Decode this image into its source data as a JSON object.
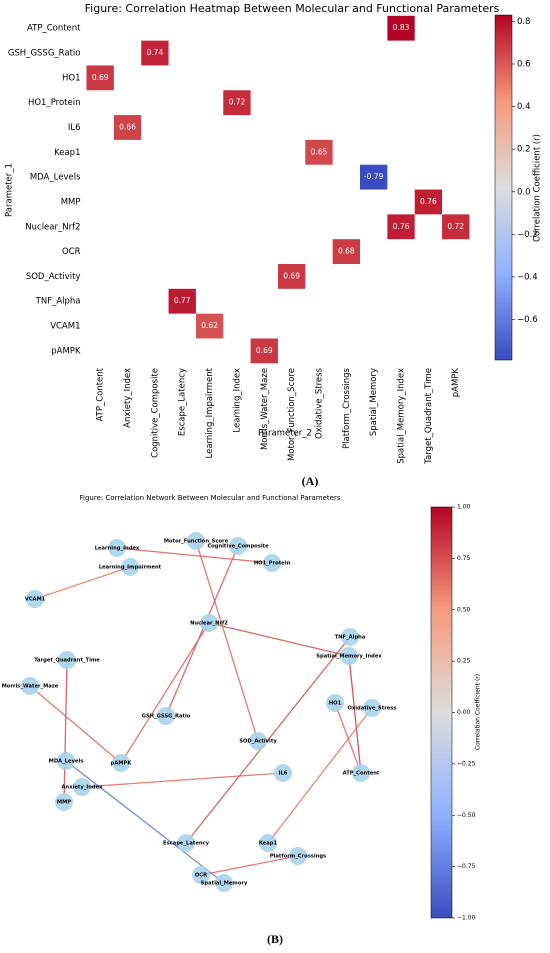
{
  "chart_data": [
    {
      "type": "heatmap",
      "title": "Figure: Correlation Heatmap Between Molecular and Functional Parameters",
      "panel": "(A)",
      "xlabel": "Parameter_2",
      "ylabel": "Parameter_1",
      "colorbar_label": "Correlation Coefficient (r)",
      "colormap": "coolwarm",
      "rows": [
        "ATP_Content",
        "GSH_GSSG_Ratio",
        "HO1",
        "HO1_Protein",
        "IL6",
        "Keap1",
        "MDA_Levels",
        "MMP",
        "Nuclear_Nrf2",
        "OCR",
        "SOD_Activity",
        "TNF_Alpha",
        "VCAM1",
        "pAMPK"
      ],
      "columns": [
        "ATP_Content",
        "Anxiety_Index",
        "Cognitive_Composite",
        "Escape_Latency",
        "Learning_Impairment",
        "Learning_Index",
        "Morris_Water_Maze",
        "Motor_Function_Score",
        "Oxidative_Stress",
        "Platform_Crossings",
        "Spatial_Memory",
        "Spatial_Memory_Index",
        "Target_Quadrant_Time",
        "pAMPK"
      ],
      "values": [
        [
          null,
          null,
          null,
          null,
          null,
          null,
          null,
          null,
          null,
          null,
          null,
          0.83,
          null,
          null
        ],
        [
          null,
          null,
          0.74,
          null,
          null,
          null,
          null,
          null,
          null,
          null,
          null,
          null,
          null,
          null
        ],
        [
          0.69,
          null,
          null,
          null,
          null,
          null,
          null,
          null,
          null,
          null,
          null,
          null,
          null,
          null
        ],
        [
          null,
          null,
          null,
          null,
          null,
          0.72,
          null,
          null,
          null,
          null,
          null,
          null,
          null,
          null
        ],
        [
          null,
          0.66,
          null,
          null,
          null,
          null,
          null,
          null,
          null,
          null,
          null,
          null,
          null,
          null
        ],
        [
          null,
          null,
          null,
          null,
          null,
          null,
          null,
          null,
          0.65,
          null,
          null,
          null,
          null,
          null
        ],
        [
          null,
          null,
          null,
          null,
          null,
          null,
          null,
          null,
          null,
          null,
          -0.79,
          null,
          null,
          null
        ],
        [
          null,
          null,
          null,
          null,
          null,
          null,
          null,
          null,
          null,
          null,
          null,
          null,
          0.76,
          null
        ],
        [
          null,
          null,
          null,
          null,
          null,
          null,
          null,
          null,
          null,
          null,
          null,
          0.76,
          null,
          0.72
        ],
        [
          null,
          null,
          null,
          null,
          null,
          null,
          null,
          null,
          null,
          0.68,
          null,
          null,
          null,
          null
        ],
        [
          null,
          null,
          null,
          null,
          null,
          null,
          null,
          0.69,
          null,
          null,
          null,
          null,
          null,
          null
        ],
        [
          null,
          null,
          null,
          0.77,
          null,
          null,
          null,
          null,
          null,
          null,
          null,
          null,
          null,
          null
        ],
        [
          null,
          null,
          null,
          null,
          0.62,
          null,
          null,
          null,
          null,
          null,
          null,
          null,
          null,
          null
        ],
        [
          null,
          null,
          null,
          null,
          null,
          null,
          0.69,
          null,
          null,
          null,
          null,
          null,
          null,
          null
        ]
      ],
      "clim": [
        -0.79,
        0.83
      ],
      "cticks": [
        {
          "value": -0.6,
          "label": "−0.6"
        },
        {
          "value": -0.4,
          "label": "−0.4"
        },
        {
          "value": -0.2,
          "label": "−0.2"
        },
        {
          "value": 0,
          "label": "0.0"
        },
        0.2,
        0.4,
        0.6,
        0.8
      ]
    },
    {
      "type": "network",
      "title": "Figure: Correlation Network Between Molecular and Functional Parameters",
      "panel": "(B)",
      "colorbar_label": "Correlation Coefficient (r)",
      "colormap": "coolwarm",
      "nodes": [
        "Learning_Index",
        "Motor_Function_Score",
        "Cognitive_Composite",
        "HO1_Protein",
        "Learning_Impairment",
        "VCAM1",
        "Nuclear_Nrf2",
        "TNF_Alpha",
        "Spatial_Memory_Index",
        "Target_Quadrant_Time",
        "Morris_Water_Maze",
        "HO1",
        "Oxidative_Stress",
        "GSH_GSSG_Ratio",
        "SOD_Activity",
        "pAMPK",
        "MDA_Levels",
        "IL6",
        "ATP_Content",
        "Anxiety_Index",
        "MMP",
        "Keap1",
        "Escape_Latency",
        "Platform_Crossings",
        "OCR",
        "Spatial_Memory"
      ],
      "edges": [
        {
          "source": "ATP_Content",
          "target": "Spatial_Memory_Index",
          "value": 0.83
        },
        {
          "source": "GSH_GSSG_Ratio",
          "target": "Cognitive_Composite",
          "value": 0.74
        },
        {
          "source": "HO1",
          "target": "ATP_Content",
          "value": 0.69
        },
        {
          "source": "HO1_Protein",
          "target": "Learning_Index",
          "value": 0.72
        },
        {
          "source": "IL6",
          "target": "Anxiety_Index",
          "value": 0.66
        },
        {
          "source": "Keap1",
          "target": "Oxidative_Stress",
          "value": 0.65
        },
        {
          "source": "MDA_Levels",
          "target": "Spatial_Memory",
          "value": -0.79
        },
        {
          "source": "MMP",
          "target": "Target_Quadrant_Time",
          "value": 0.76
        },
        {
          "source": "Nuclear_Nrf2",
          "target": "Spatial_Memory_Index",
          "value": 0.76
        },
        {
          "source": "Nuclear_Nrf2",
          "target": "pAMPK",
          "value": 0.72
        },
        {
          "source": "OCR",
          "target": "Platform_Crossings",
          "value": 0.68
        },
        {
          "source": "SOD_Activity",
          "target": "Motor_Function_Score",
          "value": 0.69
        },
        {
          "source": "TNF_Alpha",
          "target": "Escape_Latency",
          "value": 0.77
        },
        {
          "source": "VCAM1",
          "target": "Learning_Impairment",
          "value": 0.62
        },
        {
          "source": "pAMPK",
          "target": "Morris_Water_Maze",
          "value": 0.69
        }
      ],
      "clim": [
        -1,
        1
      ],
      "cticks": [
        {
          "value": -1,
          "label": "−1.00"
        },
        {
          "value": -0.75,
          "label": "−0.75"
        },
        {
          "value": -0.5,
          "label": "−0.50"
        },
        {
          "value": -0.25,
          "label": "−0.25"
        },
        {
          "value": 0,
          "label": "0.00"
        },
        {
          "value": 0.25,
          "label": "0.25"
        },
        {
          "value": 0.5,
          "label": "0.50"
        },
        {
          "value": 0.75,
          "label": "0.75"
        },
        {
          "value": 1,
          "label": "1.00"
        }
      ]
    }
  ]
}
